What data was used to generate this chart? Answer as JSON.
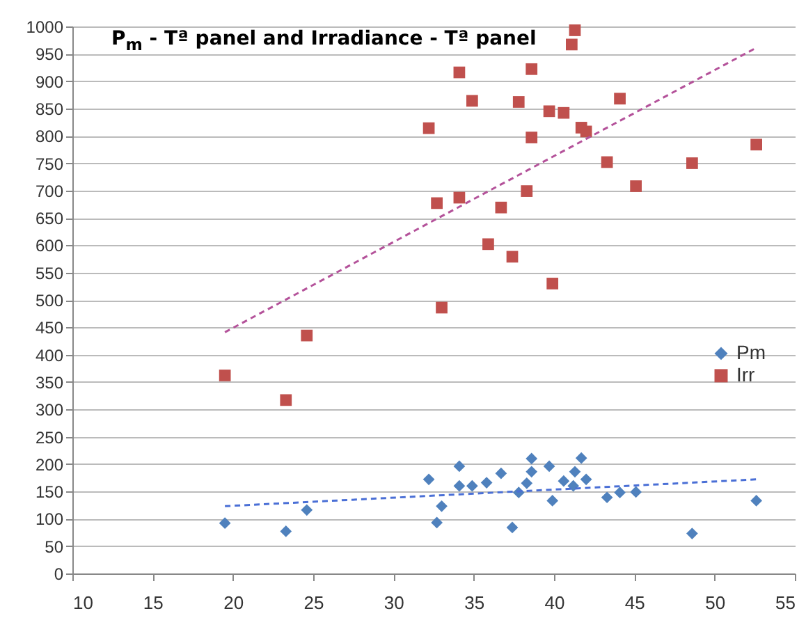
{
  "chart_data": {
    "type": "scatter",
    "title": "P$_{m}$ - Tª panel  and Irradiance - Tª panel",
    "xlim": [
      10,
      55
    ],
    "xticks": [
      10,
      15,
      20,
      25,
      30,
      35,
      40,
      45,
      50,
      55
    ],
    "ylim": [
      0,
      1000
    ],
    "yticks": [
      0,
      50,
      100,
      150,
      200,
      250,
      300,
      350,
      400,
      450,
      500,
      550,
      600,
      650,
      700,
      750,
      800,
      850,
      900,
      950,
      1000
    ],
    "grid": "y",
    "legend": "right",
    "series": [
      {
        "name": "Pm",
        "color": "#4f81bd",
        "marker": "diamond",
        "x": [
          19.5,
          23.3,
          24.6,
          32.2,
          32.7,
          33.0,
          34.1,
          34.1,
          34.9,
          35.8,
          36.7,
          37.4,
          37.8,
          38.3,
          38.6,
          38.6,
          39.7,
          39.9,
          40.6,
          41.2,
          41.3,
          41.7,
          42.0,
          43.3,
          44.1,
          45.1,
          48.6,
          52.6
        ],
        "values": [
          92,
          77,
          116,
          172,
          93,
          123,
          196,
          160,
          160,
          166,
          183,
          84,
          148,
          165,
          186,
          210,
          196,
          133,
          169,
          160,
          186,
          211,
          172,
          139,
          148,
          149,
          73,
          133
        ]
      },
      {
        "name": "Irr",
        "color": "#c0504d",
        "marker": "square",
        "x": [
          19.5,
          23.3,
          24.6,
          32.2,
          32.7,
          33.0,
          34.1,
          34.1,
          34.9,
          35.9,
          36.7,
          37.4,
          37.8,
          38.3,
          38.6,
          38.6,
          39.7,
          39.9,
          40.6,
          41.1,
          41.3,
          41.7,
          42.0,
          43.3,
          44.1,
          45.1,
          48.6,
          52.6
        ],
        "values": [
          362,
          317,
          435,
          814,
          677,
          486,
          916,
          687,
          864,
          602,
          669,
          579,
          862,
          699,
          922,
          797,
          845,
          530,
          842,
          967,
          993,
          815,
          808,
          752,
          868,
          708,
          750,
          784
        ]
      },
      {
        "type": "line",
        "color": "#4a6fd6",
        "line_style": "dashed",
        "x": [
          19.5,
          52.6
        ],
        "values": [
          123,
          172
        ]
      },
      {
        "type": "line",
        "color": "#b4529a",
        "line_style": "dashed",
        "x": [
          19.5,
          52.6
        ],
        "values": [
          441,
          961
        ]
      }
    ]
  }
}
